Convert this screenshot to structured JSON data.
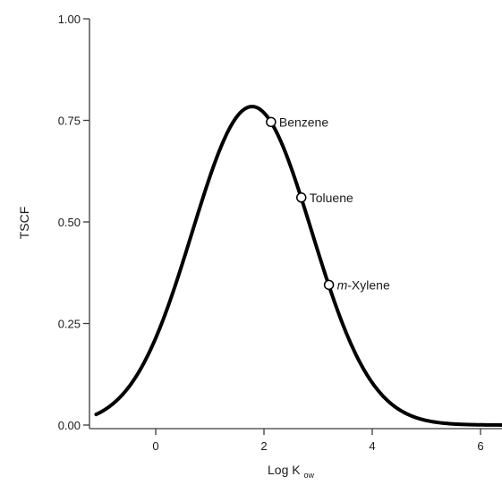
{
  "chart_data": {
    "type": "line",
    "title": "",
    "xlabel": "Log K",
    "xlabel_subscript": "ow",
    "ylabel": "TSCF",
    "xlim": [
      -1.5,
      6.5
    ],
    "ylim": [
      0,
      1
    ],
    "xticks": [
      0,
      2,
      4,
      6
    ],
    "yticks": [
      0,
      0.25,
      0.5,
      0.75,
      1
    ],
    "xtick_labels": [
      "0",
      "2",
      "4",
      "6"
    ],
    "ytick_labels": [
      "0.00",
      "0.25",
      "0.50",
      "0.75",
      "1.00"
    ],
    "grid": false,
    "curve": {
      "model": "gaussian",
      "amplitude": 0.784,
      "center": 1.78,
      "width": 2.44,
      "x_range": [
        -1.1,
        6.5
      ]
    },
    "points": [
      {
        "label": "Benzene",
        "label_italic": "",
        "x": 2.13,
        "y": 0.746
      },
      {
        "label": "Toluene",
        "label_italic": "",
        "x": 2.69,
        "y": 0.56
      },
      {
        "label": "-Xylene",
        "label_italic": "m",
        "x": 3.2,
        "y": 0.345
      }
    ],
    "colors": {
      "curve": "#000000",
      "axis": "#3a3a3a",
      "marker_fill": "#ffffff"
    }
  }
}
